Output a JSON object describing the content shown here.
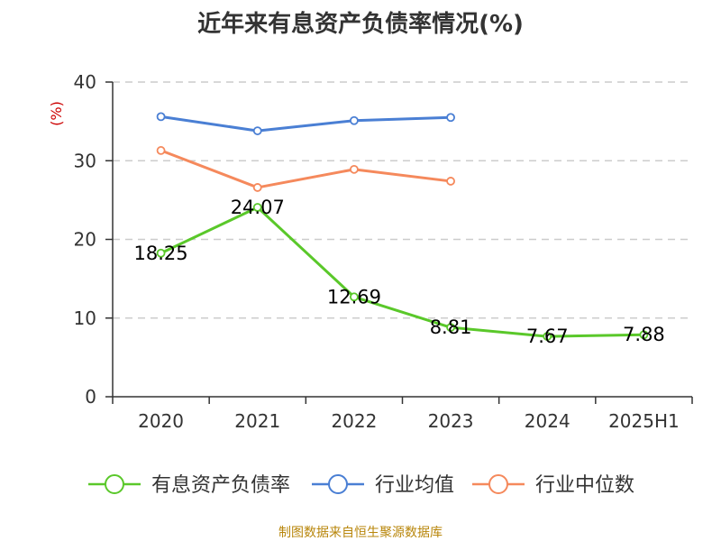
{
  "title": "近年来有息资产负债率情况(%)",
  "source": "制图数据来自恒生聚源数据库",
  "chart_data": {
    "type": "line",
    "ylabel": "(%)",
    "ylim": [
      0,
      40
    ],
    "yticks": [
      0,
      10,
      20,
      30,
      40
    ],
    "categories": [
      "2020",
      "2021",
      "2022",
      "2023",
      "2024",
      "2025H1"
    ],
    "grid": true,
    "legend_position": "bottom",
    "series": [
      {
        "name": "有息资产负债率",
        "color": "#5ac82a",
        "values": [
          18.25,
          24.07,
          12.69,
          8.81,
          7.67,
          7.88
        ],
        "labels": [
          "18.25",
          "24.07",
          "12.69",
          "8.81",
          "7.67",
          "7.88"
        ]
      },
      {
        "name": "行业均值",
        "color": "#4a7fd4",
        "values": [
          35.6,
          33.8,
          35.1,
          35.5,
          null,
          null
        ]
      },
      {
        "name": "行业中位数",
        "color": "#f5895c",
        "values": [
          31.3,
          26.6,
          28.9,
          27.4,
          null,
          null
        ]
      }
    ]
  }
}
